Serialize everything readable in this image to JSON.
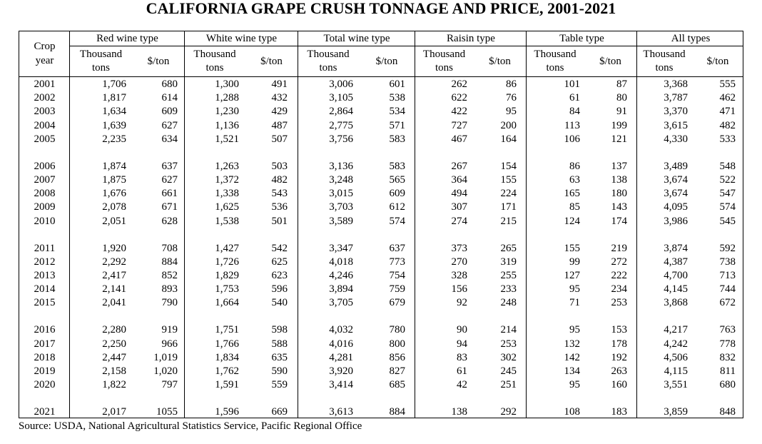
{
  "title": "CALIFORNIA GRAPE CRUSH TONNAGE AND PRICE, 2001-2021",
  "source": "Source:  USDA, National Agricultural Statistics Service, Pacific Regional Office",
  "crop_year_label": [
    "Crop",
    "year"
  ],
  "groups": [
    "Red wine type",
    "White wine type",
    "Total wine type",
    "Raisin type",
    "Table type",
    "All types"
  ],
  "sub_tons": [
    "Thousand",
    "tons"
  ],
  "sub_price": "$/ton",
  "rows": [
    [
      "2001",
      "1,706",
      "680",
      "1,300",
      "491",
      "3,006",
      "601",
      "262",
      "86",
      "101",
      "87",
      "3,368",
      "555"
    ],
    [
      "2002",
      "1,817",
      "614",
      "1,288",
      "432",
      "3,105",
      "538",
      "622",
      "76",
      "61",
      "80",
      "3,787",
      "462"
    ],
    [
      "2003",
      "1,634",
      "609",
      "1,230",
      "429",
      "2,864",
      "534",
      "422",
      "95",
      "84",
      "91",
      "3,370",
      "471"
    ],
    [
      "2004",
      "1,639",
      "627",
      "1,136",
      "487",
      "2,775",
      "571",
      "727",
      "200",
      "113",
      "199",
      "3,615",
      "482"
    ],
    [
      "2005",
      "2,235",
      "634",
      "1,521",
      "507",
      "3,756",
      "583",
      "467",
      "164",
      "106",
      "121",
      "4,330",
      "533"
    ],
    [
      "2006",
      "1,874",
      "637",
      "1,263",
      "503",
      "3,136",
      "583",
      "267",
      "154",
      "86",
      "137",
      "3,489",
      "548"
    ],
    [
      "2007",
      "1,875",
      "627",
      "1,372",
      "482",
      "3,248",
      "565",
      "364",
      "155",
      "63",
      "138",
      "3,674",
      "522"
    ],
    [
      "2008",
      "1,676",
      "661",
      "1,338",
      "543",
      "3,015",
      "609",
      "494",
      "224",
      "165",
      "180",
      "3,674",
      "547"
    ],
    [
      "2009",
      "2,078",
      "671",
      "1,625",
      "536",
      "3,703",
      "612",
      "307",
      "171",
      "85",
      "143",
      "4,095",
      "574"
    ],
    [
      "2010",
      "2,051",
      "628",
      "1,538",
      "501",
      "3,589",
      "574",
      "274",
      "215",
      "124",
      "174",
      "3,986",
      "545"
    ],
    [
      "2011",
      "1,920",
      "708",
      "1,427",
      "542",
      "3,347",
      "637",
      "373",
      "265",
      "155",
      "219",
      "3,874",
      "592"
    ],
    [
      "2012",
      "2,292",
      "884",
      "1,726",
      "625",
      "4,018",
      "773",
      "270",
      "319",
      "99",
      "272",
      "4,387",
      "738"
    ],
    [
      "2013",
      "2,417",
      "852",
      "1,829",
      "623",
      "4,246",
      "754",
      "328",
      "255",
      "127",
      "222",
      "4,700",
      "713"
    ],
    [
      "2014",
      "2,141",
      "893",
      "1,753",
      "596",
      "3,894",
      "759",
      "156",
      "233",
      "95",
      "234",
      "4,145",
      "744"
    ],
    [
      "2015",
      "2,041",
      "790",
      "1,664",
      "540",
      "3,705",
      "679",
      "92",
      "248",
      "71",
      "253",
      "3,868",
      "672"
    ],
    [
      "2016",
      "2,280",
      "919",
      "1,751",
      "598",
      "4,032",
      "780",
      "90",
      "214",
      "95",
      "153",
      "4,217",
      "763"
    ],
    [
      "2017",
      "2,250",
      "966",
      "1,766",
      "588",
      "4,016",
      "800",
      "94",
      "253",
      "132",
      "178",
      "4,242",
      "778"
    ],
    [
      "2018",
      "2,447",
      "1,019",
      "1,834",
      "635",
      "4,281",
      "856",
      "83",
      "302",
      "142",
      "192",
      "4,506",
      "832"
    ],
    [
      "2019",
      "2,158",
      "1,020",
      "1,762",
      "590",
      "3,920",
      "827",
      "61",
      "245",
      "134",
      "263",
      "4,115",
      "811"
    ],
    [
      "2020",
      "1,822",
      "797",
      "1,591",
      "559",
      "3,414",
      "685",
      "42",
      "251",
      "95",
      "160",
      "3,551",
      "680"
    ],
    [
      "2021",
      "2,017",
      "1055",
      "1,596",
      "669",
      "3,613",
      "884",
      "138",
      "292",
      "108",
      "183",
      "3,859",
      "848"
    ]
  ]
}
